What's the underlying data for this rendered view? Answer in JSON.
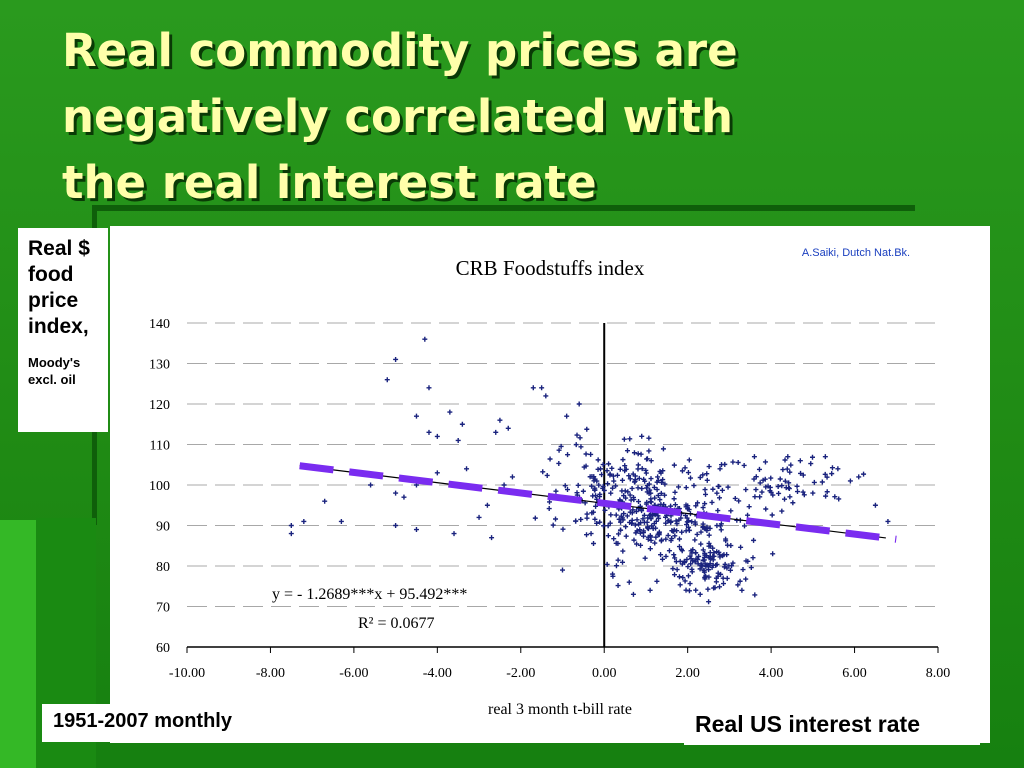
{
  "slide": {
    "title": "Real commodity prices are\nnegatively correlated with\nthe real interest rate",
    "ylabel_main": "Real $\nfood\nprice\nindex,",
    "ylabel_sub": "Moody's\nexcl. oil",
    "period_note": "1951-2007 monthly",
    "xaxis_note": "Real US interest rate"
  },
  "chart_data": {
    "type": "scatter",
    "title": "CRB Foodstuffs index",
    "source_note": "A.Saiki, Dutch Nat.Bk.",
    "xlabel": "real 3 month t-bill rate",
    "ylabel": "",
    "xlim": [
      -10,
      8
    ],
    "ylim": [
      60,
      140
    ],
    "x_ticks": [
      -10,
      -8,
      -6,
      -4,
      -2,
      0,
      2,
      4,
      6,
      8
    ],
    "x_tick_labels": [
      "-10.00",
      "-8.00",
      "-6.00",
      "-4.00",
      "-2.00",
      "0.00",
      "2.00",
      "4.00",
      "6.00",
      "8.00"
    ],
    "y_ticks": [
      60,
      70,
      80,
      90,
      100,
      110,
      120,
      130,
      140
    ],
    "y_tick_labels": [
      "60",
      "70",
      "80",
      "90",
      "100",
      "110",
      "120",
      "130",
      "140"
    ],
    "grid": true,
    "marker_color": "#1a237e",
    "trendline": {
      "slope": -1.2689,
      "intercept": 95.492,
      "x_range": [
        -7.3,
        7.0
      ],
      "color": "#7a2cf0"
    },
    "equation": "y = - 1.2689***x + 95.492***",
    "r_squared": "R² = 0.0677",
    "points_note": "approximately 680 monthly observations, dense cluster between x = -1 and x = 4",
    "points": [
      [
        -4.3,
        136
      ],
      [
        -5.0,
        131
      ],
      [
        -5.2,
        126
      ],
      [
        -4.2,
        124
      ],
      [
        -1.7,
        124
      ],
      [
        -1.5,
        124
      ],
      [
        -1.4,
        122
      ],
      [
        -0.6,
        120
      ],
      [
        -3.7,
        118
      ],
      [
        -4.5,
        117
      ],
      [
        -3.4,
        115
      ],
      [
        -2.5,
        116
      ],
      [
        -4.2,
        113
      ],
      [
        -4.0,
        112
      ],
      [
        -3.5,
        111
      ],
      [
        -2.6,
        113
      ],
      [
        -2.3,
        114
      ],
      [
        -0.9,
        117
      ],
      [
        -3.3,
        104
      ],
      [
        -4.5,
        100
      ],
      [
        -4.0,
        103
      ],
      [
        -5.6,
        100
      ],
      [
        -5.0,
        98
      ],
      [
        -4.8,
        97
      ],
      [
        -6.7,
        96
      ],
      [
        -6.3,
        91
      ],
      [
        -5.0,
        90
      ],
      [
        -4.5,
        89
      ],
      [
        -3.6,
        88
      ],
      [
        -2.7,
        87
      ],
      [
        -2.8,
        95
      ],
      [
        -7.5,
        90
      ],
      [
        -7.5,
        88
      ],
      [
        -7.2,
        91
      ],
      [
        -3.0,
        92
      ],
      [
        -2.4,
        100
      ],
      [
        -2.2,
        102
      ],
      [
        -1.0,
        79
      ],
      [
        0.2,
        78
      ],
      [
        0.6,
        76
      ],
      [
        0.7,
        73
      ],
      [
        1.1,
        74
      ],
      [
        2.3,
        73
      ],
      [
        3.3,
        74
      ],
      [
        6.5,
        95
      ],
      [
        6.8,
        91
      ],
      [
        5.0,
        98
      ],
      [
        5.9,
        101
      ],
      [
        5.3,
        107
      ],
      [
        4.4,
        107
      ],
      [
        3.6,
        107
      ],
      [
        4.7,
        106
      ],
      [
        5.6,
        104
      ],
      [
        6.1,
        102
      ]
    ]
  }
}
